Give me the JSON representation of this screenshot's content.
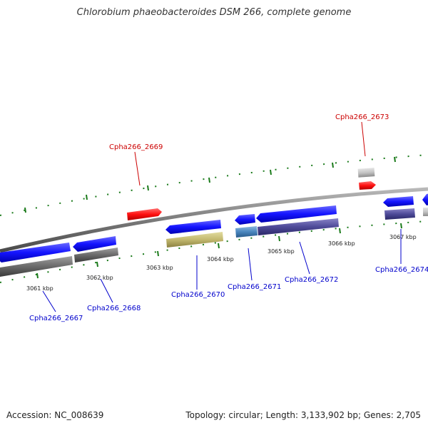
{
  "title": "Chlorobium phaeobacteroides DSM 266, complete genome",
  "footer": {
    "accession": "Accession: NC_008639",
    "topology": "Topology: circular; Length: 3,133,902 bp; Genes: 2,705"
  },
  "kbp_labels": [
    "3061 kbp",
    "3062 kbp",
    "3063 kbp",
    "3064 kbp",
    "3065 kbp",
    "3066 kbp",
    "3067 kbp"
  ],
  "genes": [
    {
      "id": "Cpha266_2667",
      "color": "#0000cc"
    },
    {
      "id": "Cpha266_2668",
      "color": "#0000cc"
    },
    {
      "id": "Cpha266_2669",
      "color": "#cc0000"
    },
    {
      "id": "Cpha266_2670",
      "color": "#0000cc"
    },
    {
      "id": "Cpha266_2671",
      "color": "#0000cc"
    },
    {
      "id": "Cpha266_2672",
      "color": "#0000cc"
    },
    {
      "id": "Cpha266_2673",
      "color": "#cc0000"
    },
    {
      "id": "Cpha266_2674",
      "color": "#0000cc"
    }
  ],
  "colors": {
    "backbone": "#8a8a8a",
    "forward_gene": "#ff1a1a",
    "reverse_gene": "#1a1aff",
    "tick": "#1a7a1a"
  }
}
